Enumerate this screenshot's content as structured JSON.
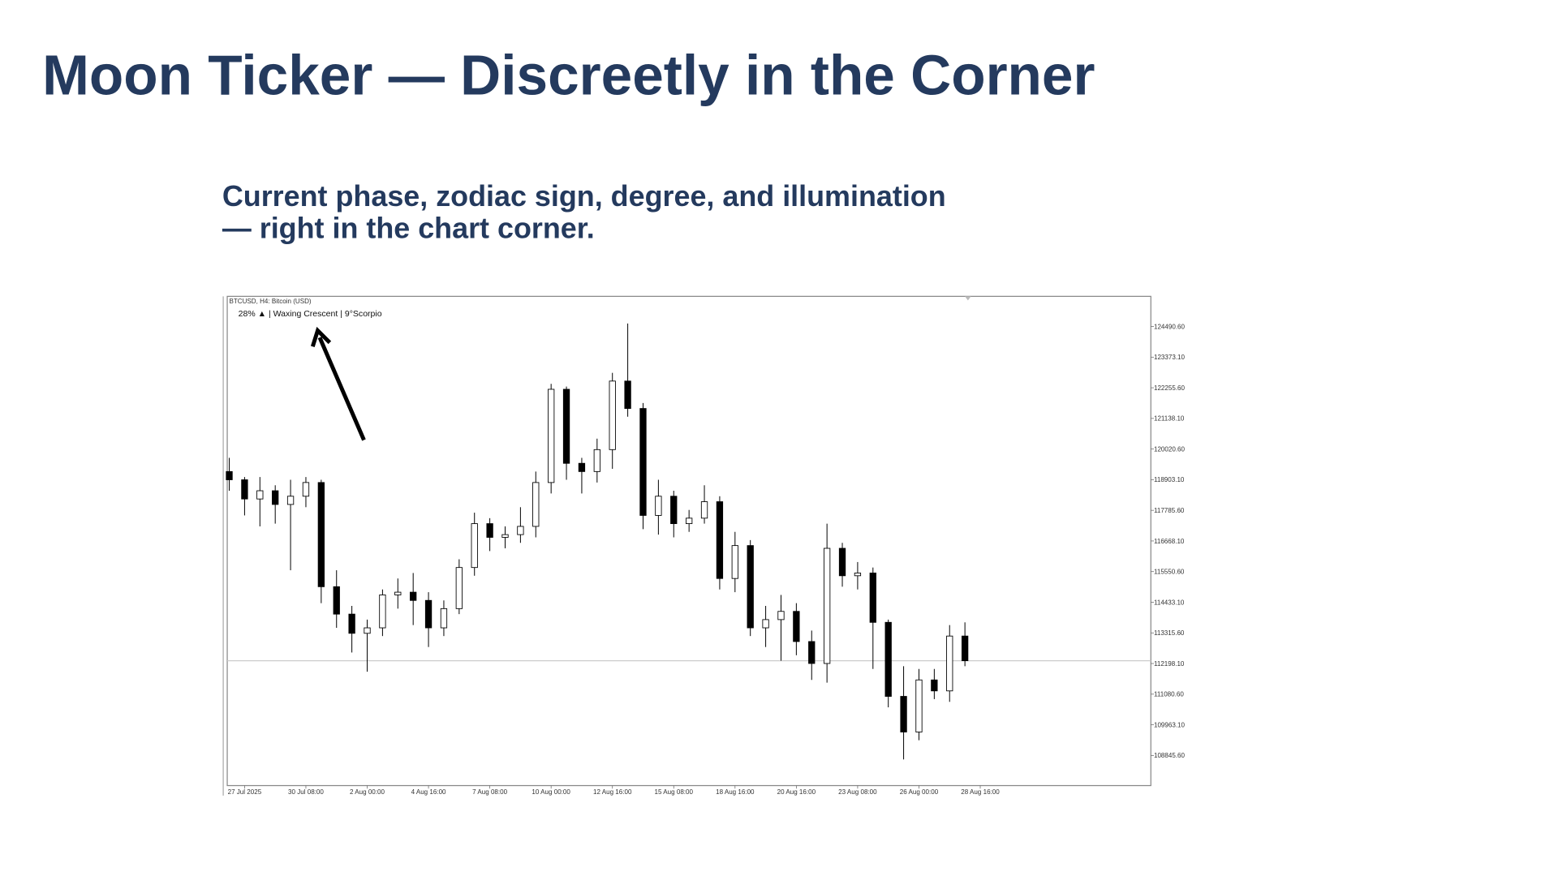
{
  "header": {
    "title": "Moon Ticker — Discreetly in the Corner",
    "subtitle_lines": [
      "Current phase, zodiac sign, degree, and illumination",
      "— right in the chart corner."
    ]
  },
  "chart_data": {
    "type": "candlestick",
    "symbol_label": "BTCUSD, H4: Bitcoin (USD)",
    "indicator_label": "28% ▲ | Waxing Crescent | 9°Scorpio",
    "categories": [
      null,
      "27 Jul 2025",
      null,
      null,
      null,
      "30 Jul 08:00",
      null,
      null,
      null,
      "2 Aug 00:00",
      null,
      null,
      null,
      "4 Aug 16:00",
      null,
      null,
      null,
      "7 Aug 08:00",
      null,
      null,
      null,
      "10 Aug 00:00",
      null,
      null,
      null,
      "12 Aug 16:00",
      null,
      null,
      null,
      "15 Aug 08:00",
      null,
      null,
      null,
      "18 Aug 16:00",
      null,
      null,
      null,
      "20 Aug 16:00",
      null,
      null,
      null,
      "23 Aug 08:00",
      null,
      null,
      null,
      "26 Aug 00:00",
      null,
      null,
      null,
      "28 Aug 16:00"
    ],
    "open": [
      119200,
      118900,
      118200,
      118500,
      118000,
      118300,
      118800,
      115000,
      114000,
      113300,
      113500,
      114700,
      114800,
      114500,
      113500,
      114200,
      115700,
      117300,
      116800,
      116900,
      117200,
      118800,
      122200,
      119500,
      119200,
      120000,
      122500,
      121500,
      117600,
      118300,
      117300,
      117500,
      118100,
      115300,
      116500,
      113500,
      113800,
      114100,
      113000,
      112200,
      116400,
      115400,
      115500,
      113700,
      111000,
      109700,
      111600,
      111200,
      113200,
      null
    ],
    "high": [
      119700,
      119000,
      119000,
      118700,
      118900,
      119000,
      118900,
      115600,
      114300,
      113800,
      114900,
      115300,
      115500,
      114800,
      114500,
      116000,
      117700,
      117500,
      117200,
      117900,
      119200,
      122400,
      122300,
      119700,
      120400,
      122800,
      124600,
      121700,
      118900,
      118500,
      117800,
      118700,
      118300,
      117000,
      116700,
      114300,
      114700,
      114400,
      113400,
      117300,
      116600,
      115900,
      115700,
      113800,
      112100,
      112000,
      112000,
      113600,
      113700,
      null
    ],
    "low": [
      118500,
      117600,
      117200,
      117300,
      115600,
      117900,
      114400,
      113500,
      112600,
      111900,
      113200,
      114200,
      113600,
      112800,
      113200,
      114000,
      115400,
      116300,
      116400,
      116600,
      116800,
      118400,
      118900,
      118400,
      118800,
      119300,
      121200,
      117100,
      116900,
      116800,
      117000,
      117300,
      114900,
      114800,
      113200,
      112800,
      112300,
      112500,
      111600,
      111500,
      115000,
      114900,
      112000,
      110600,
      108700,
      109400,
      110900,
      110800,
      112100,
      null
    ],
    "close": [
      118900,
      118200,
      118500,
      118000,
      118300,
      118800,
      115000,
      114000,
      113300,
      113500,
      114700,
      114800,
      114500,
      113500,
      114200,
      115700,
      117300,
      116800,
      116900,
      117200,
      118800,
      122200,
      119500,
      119200,
      120000,
      122500,
      121500,
      117600,
      118300,
      117300,
      117500,
      118100,
      115300,
      116500,
      113500,
      113800,
      114100,
      113000,
      112200,
      116400,
      115400,
      115500,
      113700,
      111000,
      109700,
      111600,
      111200,
      113200,
      112300,
      null
    ],
    "ylim": [
      107746,
      125590
    ],
    "yticks": [
      {
        "value": 124490.6,
        "label": "124490.60"
      },
      {
        "value": 123373.1,
        "label": "123373.10"
      },
      {
        "value": 122255.6,
        "label": "122255.60"
      },
      {
        "value": 121138.1,
        "label": "121138.10"
      },
      {
        "value": 120020.6,
        "label": "120020.60"
      },
      {
        "value": 118903.1,
        "label": "118903.10"
      },
      {
        "value": 117785.6,
        "label": "117785.60"
      },
      {
        "value": 116668.1,
        "label": "116668.10"
      },
      {
        "value": 115550.6,
        "label": "115550.60"
      },
      {
        "value": 114433.1,
        "label": "114433.10"
      },
      {
        "value": 113315.6,
        "label": "113315.60"
      },
      {
        "value": 112198.1,
        "label": "112198.10"
      },
      {
        "value": 111080.6,
        "label": "111080.60"
      },
      {
        "value": 109963.1,
        "label": "109963.10"
      },
      {
        "value": 108845.6,
        "label": "108845.60"
      }
    ],
    "up_color": "#ffffff",
    "down_color": "#000000"
  }
}
